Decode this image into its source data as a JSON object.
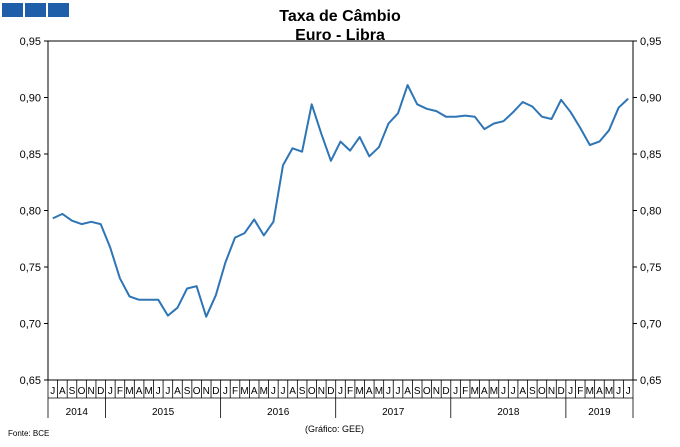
{
  "header": {
    "logo_icon": "bce-logo-squares"
  },
  "chart_data": {
    "type": "line",
    "title": "Taxa de Câmbio",
    "subtitle": "Euro - Libra",
    "ylim": [
      0.65,
      0.95
    ],
    "yticks": [
      "0,95",
      "0,90",
      "0,85",
      "0,80",
      "0,75",
      "0,70",
      "0,65"
    ],
    "grid": false,
    "line_color": "#2e75b6",
    "month_labels": [
      "J",
      "A",
      "S",
      "O",
      "N",
      "D",
      "J",
      "F",
      "M",
      "A",
      "M",
      "J",
      "J",
      "A",
      "S",
      "O",
      "N",
      "D",
      "J",
      "F",
      "M",
      "A",
      "M",
      "J",
      "J",
      "A",
      "S",
      "O",
      "N",
      "D",
      "J",
      "F",
      "M",
      "A",
      "M",
      "J",
      "J",
      "A",
      "S",
      "O",
      "N",
      "D",
      "J",
      "F",
      "M",
      "A",
      "M",
      "J",
      "J",
      "A",
      "S",
      "O",
      "N",
      "D",
      "J",
      "F",
      "M",
      "A",
      "M",
      "J",
      "J"
    ],
    "year_groups": [
      {
        "label": "2014",
        "months": 6
      },
      {
        "label": "2015",
        "months": 12
      },
      {
        "label": "2016",
        "months": 12
      },
      {
        "label": "2017",
        "months": 12
      },
      {
        "label": "2018",
        "months": 12
      },
      {
        "label": "2019",
        "months": 7
      }
    ],
    "values": [
      0.793,
      0.797,
      0.791,
      0.788,
      0.79,
      0.788,
      0.767,
      0.74,
      0.724,
      0.721,
      0.721,
      0.721,
      0.707,
      0.714,
      0.731,
      0.733,
      0.706,
      0.725,
      0.754,
      0.776,
      0.78,
      0.792,
      0.778,
      0.79,
      0.84,
      0.855,
      0.852,
      0.894,
      0.868,
      0.844,
      0.861,
      0.853,
      0.865,
      0.848,
      0.856,
      0.877,
      0.886,
      0.911,
      0.894,
      0.89,
      0.888,
      0.883,
      0.883,
      0.884,
      0.883,
      0.872,
      0.877,
      0.879,
      0.887,
      0.896,
      0.892,
      0.883,
      0.881,
      0.898,
      0.887,
      0.873,
      0.858,
      0.861,
      0.871,
      0.891,
      0.899
    ]
  },
  "footer": {
    "source": "Fonte: BCE",
    "credit": "(Gráfico: GEE)"
  }
}
